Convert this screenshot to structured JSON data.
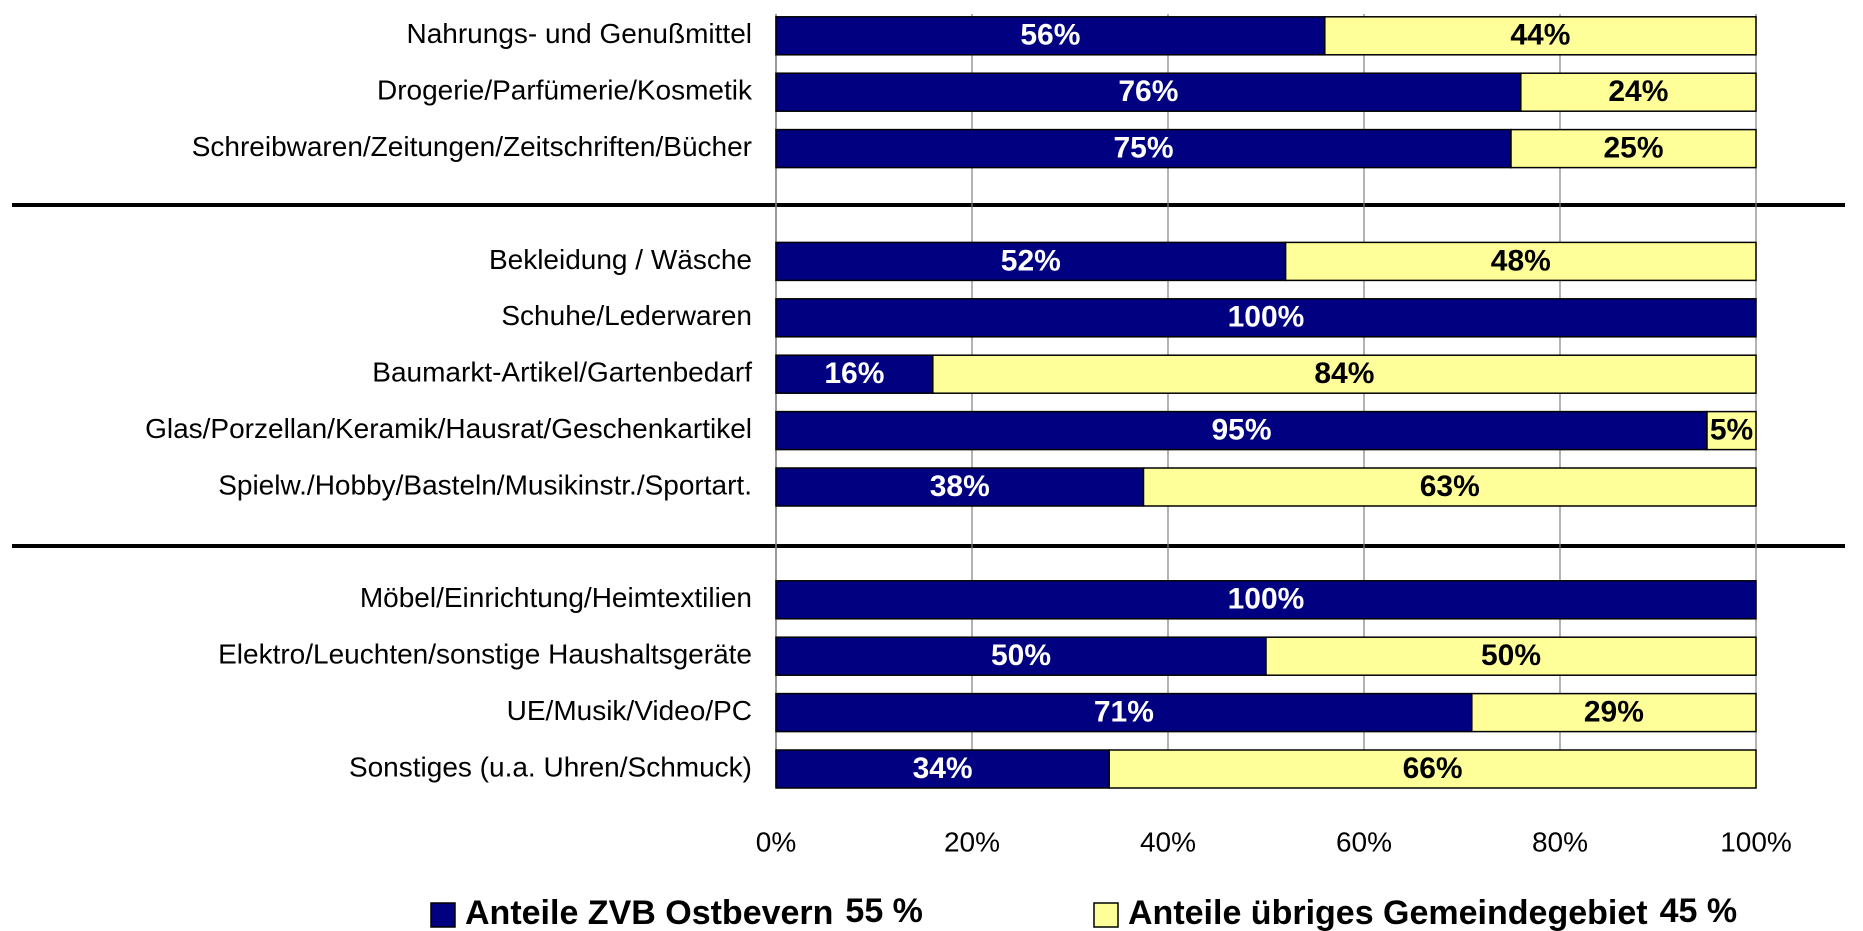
{
  "chart_data": {
    "type": "stacked-bar-horizontal",
    "categories": [
      "Nahrungs- und Genußmittel",
      "Drogerie/Parfümerie/Kosmetik",
      "Schreibwaren/Zeitungen/Zeitschriften/Bücher",
      "Bekleidung / Wäsche",
      "Schuhe/Lederwaren",
      "Baumarkt-Artikel/Gartenbedarf",
      "Glas/Porzellan/Keramik/Hausrat/Geschenkartikel",
      "Spielw./Hobby/Basteln/Musikinstr./Sportart.",
      "Möbel/Einrichtung/Heimtextilien",
      "Elektro/Leuchten/sonstige Haushaltsgeräte",
      "UE/Musik/Video/PC",
      "Sonstiges (u.a. Uhren/Schmuck)"
    ],
    "series": [
      {
        "name": "Anteile ZVB Ostbevern",
        "legend_note": "55 %",
        "color": "#000080",
        "label_color": "#ffffff",
        "values": [
          56,
          76,
          75,
          52,
          100,
          16,
          95,
          37.5,
          100,
          50,
          71,
          34
        ],
        "value_labels": [
          "56%",
          "76%",
          "75%",
          "52%",
          "100%",
          "16%",
          "95%",
          "38%",
          "100%",
          "50%",
          "71%",
          "34%"
        ]
      },
      {
        "name": "Anteile übriges Gemeindegebiet",
        "legend_note": "45 %",
        "color": "#ffff99",
        "label_color": "#000000",
        "values": [
          44,
          24,
          25,
          48,
          0,
          84,
          5,
          62.5,
          0,
          50,
          29,
          66
        ],
        "value_labels": [
          "44%",
          "24%",
          "25%",
          "48%",
          null,
          "84%",
          "5%",
          "63%",
          null,
          "50%",
          "29%",
          "66%"
        ]
      }
    ],
    "xlim": [
      0,
      100
    ],
    "xticks": [
      {
        "value": 0,
        "label": "0%"
      },
      {
        "value": 20,
        "label": "20%"
      },
      {
        "value": 40,
        "label": "40%"
      },
      {
        "value": 60,
        "label": "60%"
      },
      {
        "value": 80,
        "label": "80%"
      },
      {
        "value": 100,
        "label": "100%"
      }
    ],
    "grid": true
  }
}
